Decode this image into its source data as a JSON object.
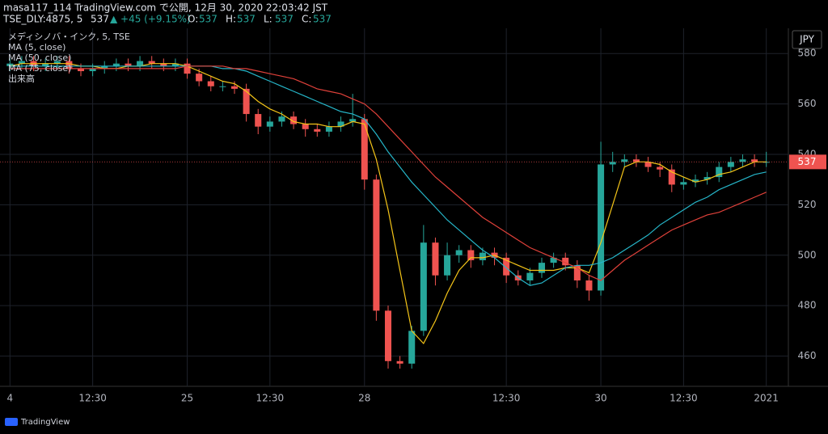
{
  "header": {
    "line1": "masa117_114 TradingView.com で公開, 12月 30, 2020 22:03:42 JST",
    "symbol": "TSE_DLY:4875, 5",
    "price": "537",
    "change": "▲ +45 (+9.15%)",
    "ohlc": [
      {
        "key": "O:",
        "value": "537"
      },
      {
        "key": "H:",
        "value": "537"
      },
      {
        "key": "L:",
        "value": "537"
      },
      {
        "key": "C:",
        "value": "537"
      }
    ]
  },
  "footer": {
    "brand": "TradingView"
  },
  "chart_data": {
    "type": "candlestick",
    "currency": "JPY",
    "volume_label": "出来高",
    "categories": [
      "4",
      null,
      null,
      null,
      null,
      null,
      null,
      "12:30",
      null,
      null,
      null,
      null,
      null,
      null,
      null,
      "25",
      null,
      null,
      null,
      null,
      null,
      null,
      "12:30",
      null,
      null,
      null,
      null,
      null,
      null,
      null,
      "28",
      null,
      null,
      null,
      null,
      null,
      null,
      null,
      null,
      null,
      null,
      null,
      "12:30",
      null,
      null,
      null,
      null,
      null,
      null,
      null,
      "30",
      null,
      null,
      null,
      null,
      null,
      null,
      "12:30",
      null,
      null,
      null,
      null,
      null,
      null,
      "2021"
    ],
    "candles": {
      "name": "メディシノバ・インク, 5, TSE",
      "up_color": "#26a69a",
      "down_color": "#ef5350",
      "open": [
        575,
        576,
        577,
        575,
        576,
        577,
        574,
        573,
        574,
        575,
        576,
        575,
        577,
        576,
        575,
        576,
        572,
        569,
        567,
        567,
        566,
        556,
        551,
        553,
        555,
        552,
        550,
        549,
        551,
        553,
        554,
        530,
        478,
        458,
        457,
        470,
        505,
        492,
        500,
        502,
        498,
        501,
        499,
        492,
        490,
        493,
        497,
        499,
        496,
        490,
        486,
        536,
        537,
        538,
        537,
        535,
        534,
        528,
        529,
        530,
        531,
        535,
        537,
        538,
        537
      ],
      "high": [
        578,
        579,
        579,
        578,
        579,
        579,
        576,
        576,
        577,
        578,
        578,
        579,
        579,
        578,
        578,
        578,
        574,
        571,
        569,
        569,
        568,
        558,
        555,
        557,
        557,
        554,
        552,
        553,
        555,
        564,
        556,
        532,
        480,
        460,
        472,
        512,
        507,
        505,
        504,
        504,
        503,
        503,
        501,
        494,
        495,
        499,
        501,
        501,
        498,
        492,
        545,
        541,
        540,
        540,
        539,
        537,
        536,
        531,
        532,
        533,
        537,
        539,
        540,
        540,
        541
      ],
      "low": [
        573,
        574,
        573,
        573,
        574,
        572,
        571,
        571,
        572,
        573,
        573,
        573,
        574,
        573,
        573,
        570,
        567,
        565,
        565,
        564,
        553,
        548,
        549,
        551,
        550,
        547,
        547,
        547,
        549,
        551,
        526,
        474,
        455,
        455,
        455,
        468,
        488,
        490,
        497,
        495,
        496,
        496,
        489,
        488,
        488,
        491,
        495,
        494,
        487,
        482,
        484,
        533,
        535,
        535,
        533,
        531,
        525,
        526,
        527,
        528,
        529,
        533,
        535,
        535,
        535
      ],
      "close": [
        576,
        577,
        575,
        576,
        577,
        574,
        573,
        574,
        575,
        576,
        575,
        577,
        576,
        575,
        576,
        572,
        569,
        567,
        567,
        566,
        556,
        551,
        553,
        555,
        552,
        550,
        549,
        551,
        553,
        554,
        530,
        478,
        458,
        457,
        470,
        505,
        492,
        500,
        502,
        498,
        501,
        499,
        492,
        490,
        493,
        497,
        499,
        496,
        490,
        486,
        536,
        537,
        538,
        537,
        535,
        534,
        528,
        529,
        530,
        531,
        535,
        537,
        538,
        537,
        537
      ]
    },
    "series": [
      {
        "name": "MA (5, close)",
        "color": "#f5c518",
        "values": [
          575,
          576,
          576,
          576,
          576,
          576,
          575,
          575,
          574,
          574,
          575,
          575,
          576,
          576,
          576,
          575,
          573,
          571,
          569,
          568,
          565,
          561,
          558,
          556,
          553,
          552,
          552,
          551,
          551,
          553,
          552,
          538,
          518,
          494,
          470,
          465,
          474,
          485,
          494,
          499,
          499,
          500,
          498,
          496,
          494,
          494,
          494,
          495,
          495,
          493,
          505,
          520,
          535,
          537,
          537,
          536,
          533,
          531,
          529,
          530,
          532,
          533,
          535,
          537,
          537
        ]
      },
      {
        "name": "MA (50, close)",
        "color": "#26b6c9",
        "values": [
          575,
          575,
          575,
          575,
          575,
          575,
          575,
          575,
          575,
          575,
          575,
          575,
          575,
          575,
          575,
          575,
          575,
          575,
          574,
          574,
          573,
          571,
          569,
          567,
          565,
          563,
          561,
          559,
          557,
          556,
          554,
          548,
          541,
          535,
          529,
          524,
          519,
          514,
          510,
          506,
          502,
          499,
          495,
          491,
          488,
          489,
          492,
          495,
          496,
          496,
          497,
          499,
          502,
          505,
          508,
          512,
          515,
          518,
          521,
          523,
          526,
          528,
          530,
          532,
          533
        ]
      },
      {
        "name": "MA (75, close)",
        "color": "#e0413a",
        "values": [
          574,
          574,
          574,
          574,
          574,
          574,
          574,
          574,
          574,
          574,
          574,
          574,
          574,
          574,
          574,
          575,
          575,
          575,
          575,
          574,
          574,
          573,
          572,
          571,
          570,
          568,
          566,
          565,
          564,
          562,
          560,
          556,
          551,
          546,
          541,
          536,
          531,
          527,
          523,
          519,
          515,
          512,
          509,
          506,
          503,
          501,
          499,
          497,
          495,
          492,
          490,
          494,
          498,
          501,
          504,
          507,
          510,
          512,
          514,
          516,
          517,
          519,
          521,
          523,
          525
        ]
      }
    ],
    "last_price": 537,
    "last_price_color": "#ef5350",
    "ylim": [
      448,
      590
    ],
    "yticks": [
      460,
      480,
      500,
      520,
      540,
      560,
      580
    ],
    "grid": true
  }
}
